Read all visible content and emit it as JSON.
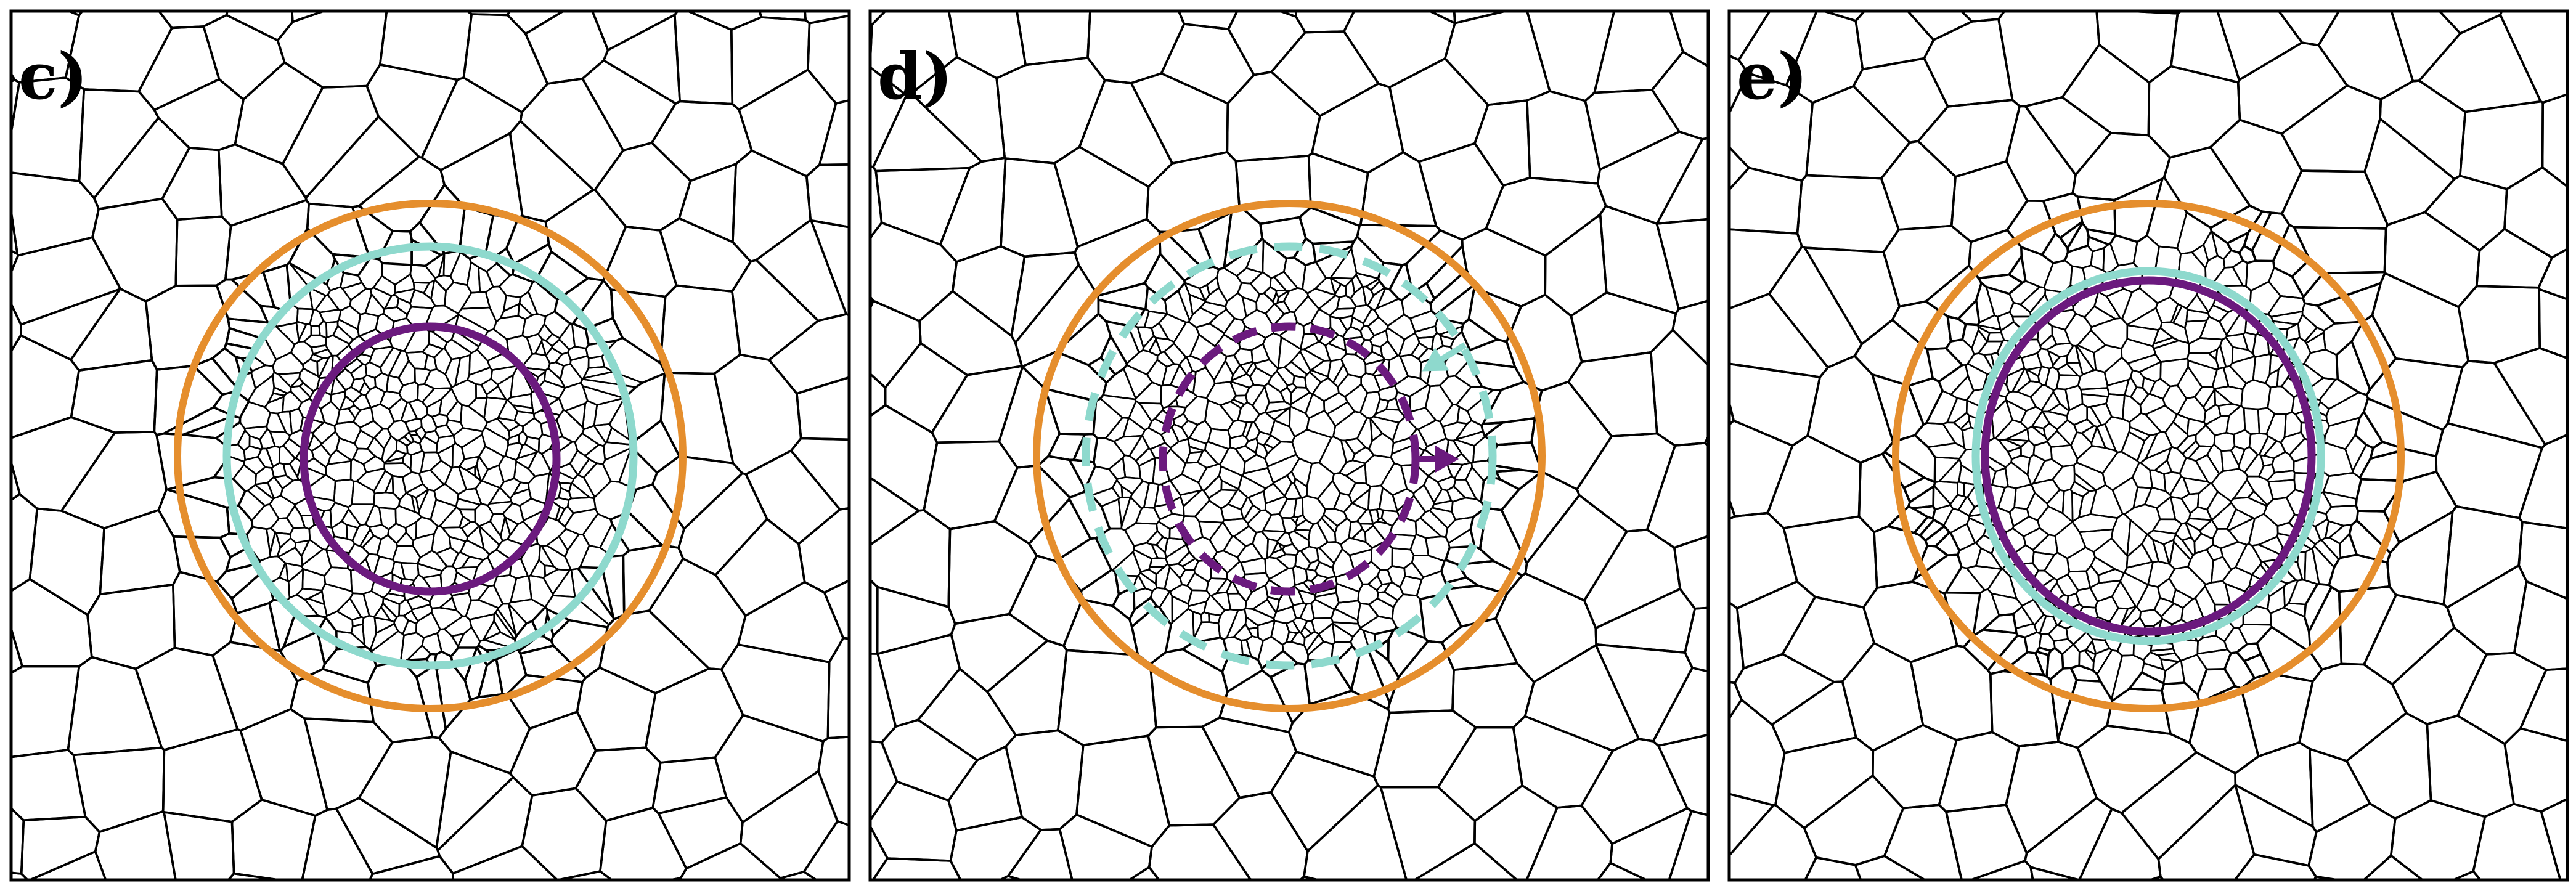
{
  "figure": {
    "panels": [
      {
        "id": "c",
        "label": "c)",
        "circles": {
          "outer": {
            "style": "solid"
          },
          "middle": {
            "style": "solid"
          },
          "inner": {
            "style": "solid"
          }
        },
        "arrow": false
      },
      {
        "id": "d",
        "label": "d)",
        "circles": {
          "outer": {
            "style": "solid"
          },
          "middle": {
            "style": "dashed"
          },
          "inner": {
            "style": "dashed"
          }
        },
        "arrow": true
      },
      {
        "id": "e",
        "label": "e)",
        "circles": {
          "outer": {
            "style": "solid"
          },
          "middle": {
            "style": "solid"
          },
          "inner": {
            "style": "solid"
          }
        },
        "arrow": false
      }
    ],
    "colors": {
      "outer_circle": "#e58e2d",
      "middle_circle": "#8ed9cd",
      "inner_circle": "#6b1a7e",
      "cell_edges": "#000000",
      "background": "#ffffff"
    },
    "mesh": "voronoi-tessellation-refined-in-center"
  }
}
